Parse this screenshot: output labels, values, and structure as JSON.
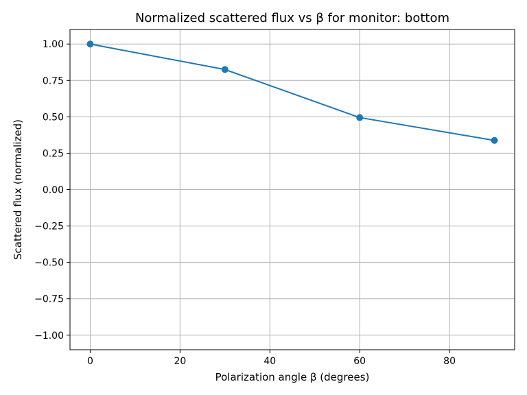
{
  "chart_data": {
    "type": "line",
    "title": "Normalized scattered flux vs β for monitor: bottom",
    "xlabel": "Polarization angle β (degrees)",
    "ylabel": "Scattered flux (normalized)",
    "xlim": [
      -4.5,
      94.5
    ],
    "ylim": [
      -1.1,
      1.1
    ],
    "x_ticks": [
      0,
      20,
      40,
      60,
      80
    ],
    "x_tick_labels": [
      "0",
      "20",
      "40",
      "60",
      "80"
    ],
    "y_ticks": [
      1.0,
      0.75,
      0.5,
      0.25,
      0.0,
      -0.25,
      -0.5,
      -0.75,
      -1.0
    ],
    "y_tick_labels": [
      "1.00",
      "0.75",
      "0.50",
      "0.25",
      "0.00",
      "−0.25",
      "−0.50",
      "−0.75",
      "−1.00"
    ],
    "grid": true,
    "series": [
      {
        "x": [
          0,
          30,
          60,
          90
        ],
        "values": [
          1.0,
          0.825,
          0.495,
          0.338
        ],
        "color": "#1f77b4",
        "marker": "circle"
      }
    ]
  }
}
